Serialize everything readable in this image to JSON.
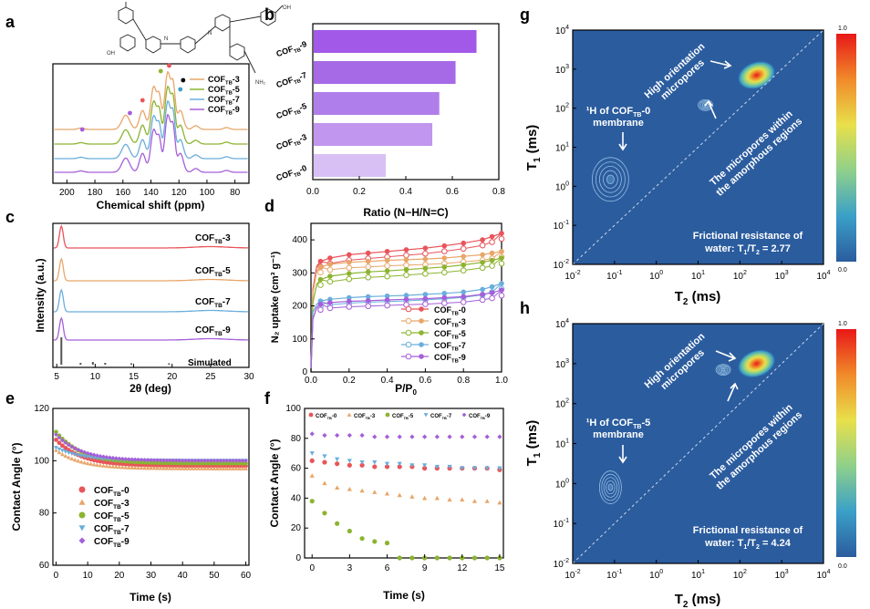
{
  "colors": {
    "COF-0": "#e8555a",
    "COF-3": "#e8a66a",
    "COF-5": "#8cb431",
    "COF-7": "#6aaedc",
    "COF-9": "#a55fd9",
    "map_bg": "#2b5c9e",
    "bar_colors": [
      "#a259e8",
      "#a76ae6",
      "#b07eea",
      "#c096ee",
      "#d8bff4"
    ]
  },
  "panels": {
    "a": {
      "letter": "a",
      "xlabel": "Chemical shift (ppm)",
      "xticks": [
        "200",
        "180",
        "160",
        "140",
        "120",
        "100",
        "80"
      ],
      "legend": [
        "COF",
        "COF",
        "COF",
        "COF"
      ],
      "legend_sub": [
        "TB",
        "TB",
        "TB",
        "TB"
      ],
      "legend_num": [
        "-3",
        "-5",
        "-7",
        "-9"
      ],
      "chem_labels": [
        "N",
        "N",
        "NH₂",
        "OH",
        "OH"
      ]
    },
    "b": {
      "letter": "b",
      "xlabel": "Ratio (N−H/N=C)",
      "xticks": [
        "0.0",
        "0.2",
        "0.4",
        "0.6",
        "0.8"
      ],
      "cat_main": [
        "COF",
        "COF",
        "COF",
        "COF",
        "COF"
      ],
      "cat_sub": [
        "TB",
        "TB",
        "TB",
        "TB",
        "TB"
      ],
      "cat_num": [
        "-9",
        "-7",
        "-5",
        "-3",
        "-0"
      ]
    },
    "c": {
      "letter": "c",
      "xlabel": "2θ (deg)",
      "ylabel": "Intensity (a.u.)",
      "xticks": [
        "5",
        "10",
        "15",
        "20",
        "25",
        "30"
      ],
      "curve_main": [
        "COF",
        "COF",
        "COF",
        "COF"
      ],
      "curve_sub": [
        "TB",
        "TB",
        "TB",
        "TB"
      ],
      "curve_num": [
        "-3",
        "-5",
        "-7",
        "-9"
      ],
      "simulated": "Simulated"
    },
    "d": {
      "letter": "d",
      "xlabel": "P/P",
      "xlabel_sub": "0",
      "ylabel": "N₂ uptake (cm³ g⁻¹)",
      "xticks": [
        "0.0",
        "0.2",
        "0.4",
        "0.6",
        "0.8",
        "1.0"
      ],
      "yticks": [
        "0",
        "100",
        "200",
        "300",
        "400"
      ],
      "legend_main": [
        "COF",
        "COF",
        "COF",
        "COF",
        "COF"
      ],
      "legend_sub": [
        "TB",
        "TB",
        "TB",
        "TB",
        "TB"
      ],
      "legend_num": [
        "-0",
        "-3",
        "-5",
        "-7",
        "-9"
      ]
    },
    "e": {
      "letter": "e",
      "xlabel": "Time (s)",
      "ylabel": "Contact Angle (°)",
      "xticks": [
        "0",
        "10",
        "20",
        "30",
        "40",
        "50",
        "60"
      ],
      "yticks": [
        "60",
        "80",
        "100",
        "120"
      ],
      "legend_main": [
        "COF",
        "COF",
        "COF",
        "COF",
        "COF"
      ],
      "legend_sub": [
        "TB",
        "TB",
        "TB",
        "TB",
        "TB"
      ],
      "legend_num": [
        "-0",
        "-3",
        "-5",
        "-7",
        "-9"
      ]
    },
    "f": {
      "letter": "f",
      "xlabel": "Time (s)",
      "ylabel": "Contact Angle (°)",
      "xticks": [
        "0",
        "3",
        "6",
        "9",
        "12",
        "15"
      ],
      "yticks": [
        "0",
        "20",
        "40",
        "60",
        "80",
        "100"
      ],
      "legend_main": [
        "COF",
        "COF",
        "COF",
        "COF",
        "COF"
      ],
      "legend_sub": [
        "TB",
        "TB",
        "TB",
        "TB",
        "TB"
      ],
      "legend_num": [
        "-0",
        "-3",
        "-5",
        "-7",
        "-9"
      ]
    },
    "g": {
      "letter": "g",
      "xlabel": "T",
      "xlabel_sub": "2",
      "xlabel_unit": " (ms)",
      "ylabel": "T",
      "ylabel_sub": "1",
      "ylabel_unit": " (ms)",
      "label_high": [
        "High orientation",
        "micropores"
      ],
      "label_amorph": [
        "The micropores within",
        "the amorphous regions"
      ],
      "label_h": [
        "¹H of COF",
        "TB",
        "-0",
        "membrane"
      ],
      "friction": [
        "Frictional resistance of",
        "water: T",
        "1",
        "/T",
        "2",
        " = 2.77"
      ],
      "scale_max": "1.0",
      "scale_min": "0.0"
    },
    "h": {
      "letter": "h",
      "xlabel": "T",
      "xlabel_sub": "2",
      "xlabel_unit": " (ms)",
      "ylabel": "T",
      "ylabel_sub": "1",
      "ylabel_unit": " (ms)",
      "label_high": [
        "High orientation",
        "micropores"
      ],
      "label_amorph": [
        "The micropores within",
        "the amorphous regions"
      ],
      "label_h": [
        "¹H of COF",
        "TB",
        "-5",
        "membrane"
      ],
      "friction": [
        "Frictional resistance of",
        "water: T",
        "1",
        "/T",
        "2",
        " = 4.24"
      ],
      "scale_max": "1.0",
      "scale_min": "0.0"
    },
    "log_ticks": {
      "base": [
        "10",
        "10",
        "10",
        "10",
        "10",
        "10",
        "10"
      ],
      "exp": [
        "-2",
        "-1",
        "0",
        "1",
        "2",
        "3",
        "4"
      ]
    }
  },
  "chart_data": [
    {
      "panel": "a",
      "type": "line",
      "xlabel": "Chemical shift (ppm)",
      "xlim": [
        210,
        70
      ],
      "series": [
        {
          "name": "COFTB-3",
          "offset": 3
        },
        {
          "name": "COFTB-5",
          "offset": 2
        },
        {
          "name": "COFTB-7",
          "offset": 1
        },
        {
          "name": "COFTB-9",
          "offset": 0
        }
      ]
    },
    {
      "panel": "b",
      "type": "bar",
      "orientation": "horizontal",
      "categories": [
        "COFTB-9",
        "COFTB-7",
        "COFTB-5",
        "COFTB-3",
        "COFTB-0"
      ],
      "values": [
        0.7,
        0.61,
        0.54,
        0.51,
        0.31
      ],
      "xlabel": "Ratio (N−H/N=C)",
      "xlim": [
        0,
        0.8
      ]
    },
    {
      "panel": "c",
      "type": "line",
      "xlabel": "2θ (deg)",
      "ylabel": "Intensity (a.u.)",
      "xlim": [
        4.5,
        30
      ],
      "peak_2theta": 5.6,
      "series": [
        {
          "name": "COFTB-3",
          "offset": 4
        },
        {
          "name": "COFTB-5",
          "offset": 3
        },
        {
          "name": "COFTB-7",
          "offset": 2
        },
        {
          "name": "COFTB-9",
          "offset": 1
        },
        {
          "name": "Simulated",
          "offset": 0
        }
      ]
    },
    {
      "panel": "d",
      "type": "line",
      "xlabel": "P/P0",
      "ylabel": "N2 uptake (cm3 g-1)",
      "xlim": [
        0,
        1
      ],
      "ylim": [
        0,
        450
      ],
      "x": [
        0.0,
        0.01,
        0.03,
        0.05,
        0.1,
        0.2,
        0.3,
        0.4,
        0.5,
        0.6,
        0.7,
        0.8,
        0.9,
        0.95,
        1.0
      ],
      "series": [
        {
          "name": "COFTB-0",
          "values": [
            0,
            250,
            320,
            335,
            345,
            355,
            360,
            365,
            370,
            375,
            382,
            390,
            400,
            410,
            420
          ]
        },
        {
          "name": "COFTB-3",
          "values": [
            0,
            240,
            305,
            318,
            326,
            332,
            335,
            338,
            340,
            342,
            345,
            350,
            355,
            360,
            365
          ]
        },
        {
          "name": "COFTB-5",
          "values": [
            0,
            210,
            265,
            280,
            290,
            298,
            303,
            306,
            310,
            314,
            318,
            324,
            332,
            338,
            345
          ]
        },
        {
          "name": "COFTB-7",
          "values": [
            0,
            180,
            205,
            215,
            220,
            225,
            228,
            230,
            232,
            235,
            238,
            242,
            250,
            258,
            268
          ]
        },
        {
          "name": "COFTB-9",
          "values": [
            0,
            160,
            195,
            205,
            210,
            214,
            216,
            218,
            220,
            222,
            225,
            228,
            235,
            240,
            248
          ]
        }
      ]
    },
    {
      "panel": "e",
      "type": "scatter",
      "xlabel": "Time (s)",
      "ylabel": "Contact Angle (°)",
      "xlim": [
        -1,
        61
      ],
      "ylim": [
        60,
        120
      ],
      "series": [
        {
          "name": "COFTB-0",
          "start": 108,
          "end": 98
        },
        {
          "name": "COFTB-3",
          "start": 104,
          "end": 97
        },
        {
          "name": "COFTB-5",
          "start": 111,
          "end": 99
        },
        {
          "name": "COFTB-7",
          "start": 105,
          "end": 100
        },
        {
          "name": "COFTB-9",
          "start": 110,
          "end": 100
        }
      ]
    },
    {
      "panel": "f",
      "type": "scatter",
      "xlabel": "Time (s)",
      "ylabel": "Contact Angle (°)",
      "xlim": [
        -0.6,
        15.3
      ],
      "ylim": [
        0,
        100
      ],
      "series": [
        {
          "name": "COFTB-0",
          "x": [
            0,
            1,
            2,
            3,
            4,
            5,
            6,
            7,
            8,
            9,
            10,
            11,
            12,
            13,
            14,
            15
          ],
          "values": [
            65,
            64,
            63,
            62,
            62,
            61,
            61,
            61,
            61,
            60,
            60,
            60,
            60,
            60,
            60,
            59
          ]
        },
        {
          "name": "COFTB-3",
          "x": [
            0,
            1,
            2,
            3,
            4,
            5,
            6,
            7,
            8,
            9,
            10,
            11,
            12,
            13,
            14,
            15
          ],
          "values": [
            55,
            50,
            47,
            46,
            45,
            44,
            43,
            42,
            41,
            40,
            40,
            39,
            39,
            38,
            38,
            37
          ]
        },
        {
          "name": "COFTB-5",
          "x": [
            0,
            1,
            2,
            3,
            4,
            5,
            6,
            7,
            8,
            9,
            10,
            11,
            12,
            13,
            14,
            15
          ],
          "values": [
            38,
            30,
            23,
            18,
            13,
            11,
            10,
            0,
            0,
            0,
            0,
            0,
            0,
            0,
            0,
            0
          ]
        },
        {
          "name": "COFTB-7",
          "x": [
            0,
            1,
            2,
            3,
            4,
            5,
            6,
            7,
            8,
            9,
            10,
            11,
            12,
            13,
            14,
            15
          ],
          "values": [
            70,
            68,
            66,
            65,
            64,
            64,
            63,
            63,
            62,
            62,
            61,
            61,
            60,
            60,
            60,
            60
          ]
        },
        {
          "name": "COFTB-9",
          "x": [
            0,
            1,
            2,
            3,
            4,
            5,
            6,
            7,
            8,
            9,
            10,
            11,
            12,
            13,
            14,
            15
          ],
          "values": [
            83,
            82,
            82,
            82,
            82,
            81,
            81,
            81,
            81,
            81,
            81,
            81,
            81,
            81,
            81,
            81
          ]
        }
      ]
    },
    {
      "panel": "g",
      "type": "heatmap",
      "xlabel": "T2 (ms)",
      "ylabel": "T1 (ms)",
      "xlim": [
        0.01,
        10000
      ],
      "ylim": [
        0.01,
        10000
      ],
      "xscale": "log",
      "yscale": "log",
      "peaks": [
        {
          "t2": 0.08,
          "t1": 1.5,
          "intensity": 0.3
        },
        {
          "t2": 15,
          "t1": 120,
          "intensity": 0.2
        },
        {
          "t2": 250,
          "t1": 700,
          "intensity": 1.0
        }
      ],
      "colorbar": [
        0,
        1
      ]
    },
    {
      "panel": "h",
      "type": "heatmap",
      "xlabel": "T2 (ms)",
      "ylabel": "T1 (ms)",
      "xlim": [
        0.01,
        10000
      ],
      "ylim": [
        0.01,
        10000
      ],
      "xscale": "log",
      "yscale": "log",
      "peaks": [
        {
          "t2": 0.08,
          "t1": 0.8,
          "intensity": 0.4
        },
        {
          "t2": 40,
          "t1": 700,
          "intensity": 0.2
        },
        {
          "t2": 250,
          "t1": 1000,
          "intensity": 1.0
        }
      ],
      "colorbar": [
        0,
        1
      ]
    }
  ]
}
